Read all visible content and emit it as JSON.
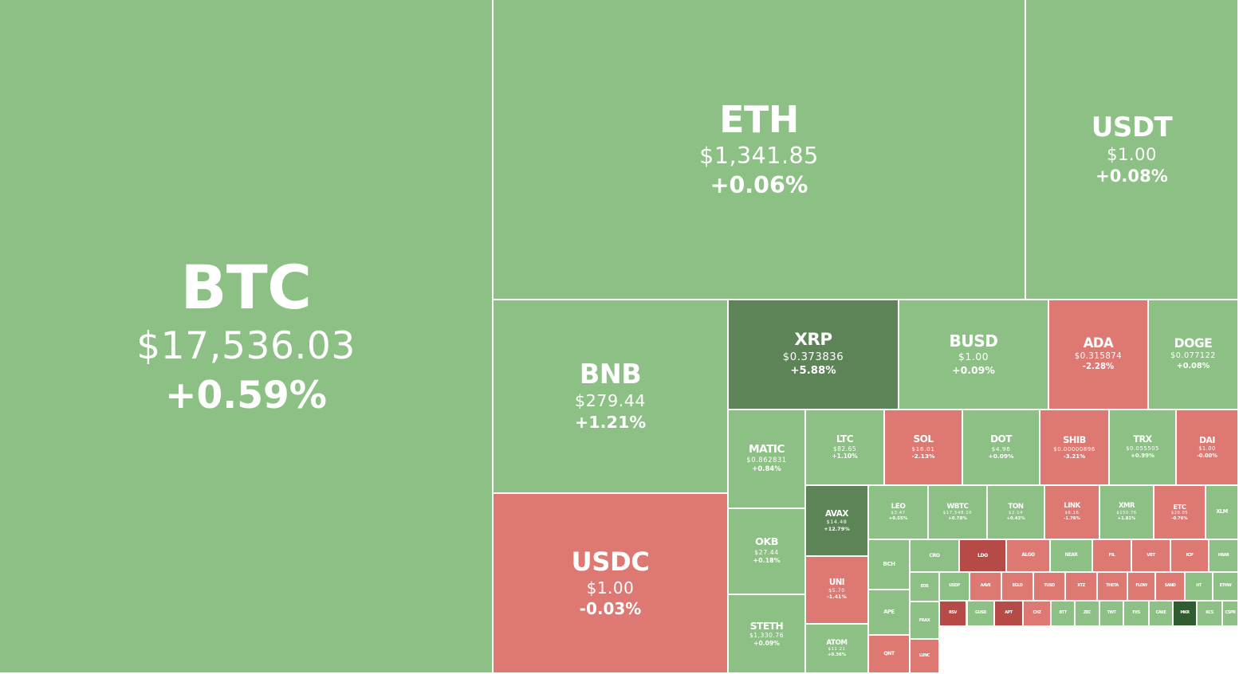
{
  "colors": {
    "up": "#8cc084",
    "down": "#dd7873",
    "strong_up": "#5c8457",
    "strong_down": "#b64a47",
    "deep_up": "#2f5d2f",
    "border": "#ffffff",
    "text": "#ffffff"
  },
  "chart_data": {
    "type": "treemap",
    "title": "",
    "value_encoding": "tile area = market capitalization; tile color = 24h price change sign and magnitude",
    "items": [
      {
        "symbol": "BTC",
        "price": "$17,536.03",
        "change": "+0.59%"
      },
      {
        "symbol": "ETH",
        "price": "$1,341.85",
        "change": "+0.06%"
      },
      {
        "symbol": "USDT",
        "price": "$1.00",
        "change": "+0.08%"
      },
      {
        "symbol": "BNB",
        "price": "$279.44",
        "change": "+1.21%"
      },
      {
        "symbol": "USDC",
        "price": "$1.00",
        "change": "-0.03%"
      },
      {
        "symbol": "XRP",
        "price": "$0.373836",
        "change": "+5.88%"
      },
      {
        "symbol": "BUSD",
        "price": "$1.00",
        "change": "+0.09%"
      },
      {
        "symbol": "ADA",
        "price": "$0.315874",
        "change": "-2.28%"
      },
      {
        "symbol": "DOGE",
        "price": "$0.077122",
        "change": "+0.08%"
      },
      {
        "symbol": "MATIC",
        "price": "$0.862831",
        "change": "+0.84%"
      },
      {
        "symbol": "LTC",
        "price": "$82.65",
        "change": "+1.10%"
      },
      {
        "symbol": "SOL",
        "price": "$16.01",
        "change": "-2.13%"
      },
      {
        "symbol": "DOT",
        "price": "$4.96",
        "change": "+0.09%"
      },
      {
        "symbol": "SHIB",
        "price": "$0.00000896",
        "change": "-3.21%"
      },
      {
        "symbol": "TRX",
        "price": "$0.055505",
        "change": "+0.99%"
      },
      {
        "symbol": "DAI",
        "price": "$1.00",
        "change": "-0.00%"
      },
      {
        "symbol": "OKB",
        "price": "$27.44",
        "change": "+0.18%"
      },
      {
        "symbol": "STETH",
        "price": "$1,330.76",
        "change": "+0.09%"
      },
      {
        "symbol": "AVAX",
        "price": "$14.48",
        "change": "+12.79%"
      },
      {
        "symbol": "UNI",
        "price": "$5.70",
        "change": "-1.41%"
      },
      {
        "symbol": "ATOM",
        "price": "$11.21",
        "change": "+0.36%"
      },
      {
        "symbol": "LEO",
        "price": "$3.47",
        "change": "+0.55%"
      },
      {
        "symbol": "WBTC",
        "price": "$17,548.16",
        "change": "+0.78%"
      },
      {
        "symbol": "TON",
        "price": "$2.14",
        "change": "+0.42%"
      },
      {
        "symbol": "LINK",
        "price": "$6.16",
        "change": "-1.76%"
      },
      {
        "symbol": "XMR",
        "price": "$150.76",
        "change": "+1.81%"
      },
      {
        "symbol": "ETC",
        "price": "$20.05",
        "change": "-0.76%"
      },
      {
        "symbol": "XLM",
        "price": "",
        "change": ""
      },
      {
        "symbol": "BCH",
        "price": "",
        "change": ""
      },
      {
        "symbol": "APE",
        "price": "",
        "change": ""
      },
      {
        "symbol": "QNT",
        "price": "",
        "change": ""
      },
      {
        "symbol": "CRO",
        "price": "",
        "change": ""
      },
      {
        "symbol": "LDO",
        "price": "",
        "change": ""
      },
      {
        "symbol": "ALGO",
        "price": "",
        "change": ""
      },
      {
        "symbol": "NEAR",
        "price": "",
        "change": ""
      },
      {
        "symbol": "FIL",
        "price": "",
        "change": ""
      },
      {
        "symbol": "VET",
        "price": "",
        "change": ""
      },
      {
        "symbol": "ICP",
        "price": "",
        "change": ""
      },
      {
        "symbol": "HBAR",
        "price": "",
        "change": ""
      },
      {
        "symbol": "EOS",
        "price": "",
        "change": ""
      },
      {
        "symbol": "USDP",
        "price": "",
        "change": ""
      },
      {
        "symbol": "AAVE",
        "price": "",
        "change": ""
      },
      {
        "symbol": "EGLD",
        "price": "",
        "change": ""
      },
      {
        "symbol": "TUSD",
        "price": "",
        "change": ""
      },
      {
        "symbol": "XTZ",
        "price": "",
        "change": ""
      },
      {
        "symbol": "THETA",
        "price": "",
        "change": ""
      },
      {
        "symbol": "FLOW",
        "price": "",
        "change": ""
      },
      {
        "symbol": "SAND",
        "price": "",
        "change": ""
      },
      {
        "symbol": "HT",
        "price": "",
        "change": ""
      },
      {
        "symbol": "ETHW",
        "price": "",
        "change": ""
      },
      {
        "symbol": "FRAX",
        "price": "",
        "change": ""
      },
      {
        "symbol": "LUNC",
        "price": "",
        "change": ""
      },
      {
        "symbol": "RSV",
        "price": "",
        "change": ""
      },
      {
        "symbol": "APT",
        "price": "",
        "change": ""
      },
      {
        "symbol": "CHZ",
        "price": "",
        "change": ""
      },
      {
        "symbol": "BTT",
        "price": "",
        "change": ""
      },
      {
        "symbol": "ZEC",
        "price": "",
        "change": ""
      },
      {
        "symbol": "TWT",
        "price": "",
        "change": ""
      },
      {
        "symbol": "FXS",
        "price": "",
        "change": ""
      },
      {
        "symbol": "CAKE",
        "price": "",
        "change": ""
      },
      {
        "symbol": "MKR",
        "price": "",
        "change": ""
      },
      {
        "symbol": "KCS",
        "price": "",
        "change": ""
      },
      {
        "symbol": "GUSD",
        "price": "",
        "change": ""
      },
      {
        "symbol": "CSPR",
        "price": "",
        "change": ""
      }
    ]
  }
}
